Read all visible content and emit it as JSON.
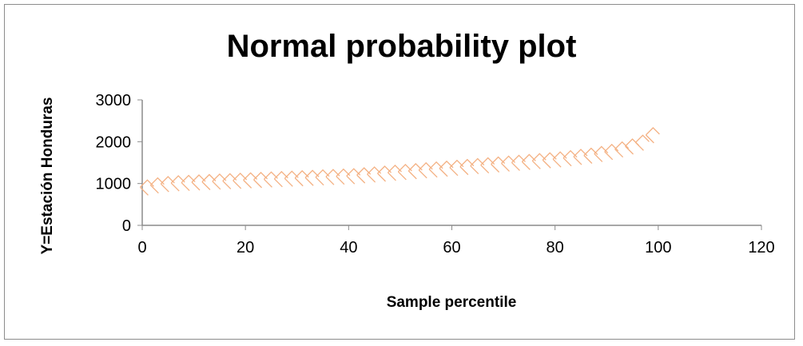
{
  "chart_data": {
    "type": "scatter",
    "title": "Normal probability plot",
    "xlabel": "Sample percentile",
    "ylabel": "Y=Estación Honduras",
    "xlim": [
      0,
      120
    ],
    "ylim": [
      0,
      3000
    ],
    "xticks": [
      0,
      20,
      40,
      60,
      80,
      100,
      120
    ],
    "yticks": [
      0,
      1000,
      2000,
      3000
    ],
    "grid": false,
    "legend": "none",
    "marker_color": "#F4B183",
    "series": [
      {
        "name": "Y=Estación Honduras",
        "x": [
          1,
          3,
          5,
          7,
          9,
          11,
          13,
          15,
          17,
          19,
          21,
          23,
          25,
          27,
          29,
          31,
          33,
          35,
          37,
          39,
          41,
          43,
          45,
          47,
          49,
          51,
          53,
          55,
          57,
          59,
          61,
          63,
          65,
          67,
          69,
          71,
          73,
          75,
          77,
          79,
          81,
          83,
          85,
          87,
          89,
          91,
          93,
          95,
          97,
          99
        ],
        "y": [
          950,
          1000,
          1030,
          1050,
          1060,
          1070,
          1080,
          1090,
          1100,
          1110,
          1120,
          1130,
          1140,
          1150,
          1160,
          1170,
          1180,
          1190,
          1200,
          1210,
          1220,
          1240,
          1260,
          1280,
          1300,
          1320,
          1340,
          1360,
          1380,
          1400,
          1420,
          1440,
          1460,
          1480,
          1500,
          1520,
          1540,
          1560,
          1580,
          1600,
          1620,
          1650,
          1680,
          1710,
          1750,
          1800,
          1860,
          1930,
          2020,
          2200
        ]
      }
    ]
  }
}
